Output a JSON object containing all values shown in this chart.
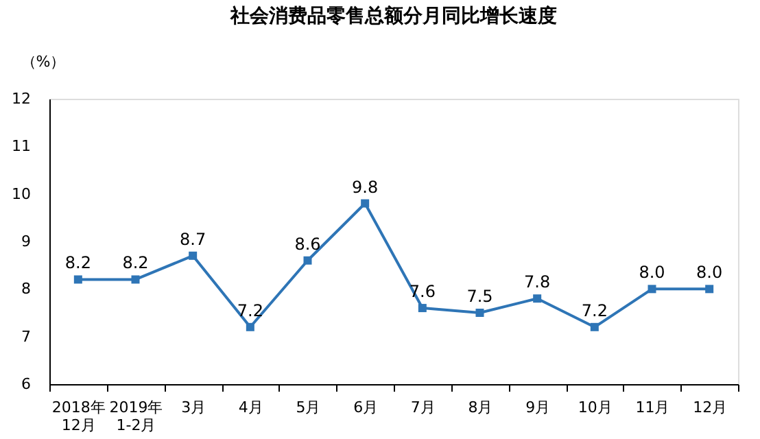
{
  "chart_data": {
    "type": "line",
    "title": "社会消费品零售总额分月同比增长速度",
    "ylabel": "（%）",
    "categories": [
      "2018年\n12月",
      "2019年\n1-2月",
      "3月",
      "4月",
      "5月",
      "6月",
      "7月",
      "8月",
      "9月",
      "10月",
      "11月",
      "12月"
    ],
    "series": [
      {
        "color": "#2e75b6",
        "values": [
          8.2,
          8.2,
          8.7,
          7.2,
          8.6,
          9.8,
          7.6,
          7.5,
          7.8,
          7.2,
          8.0,
          8.0
        ],
        "value_labels": [
          "8.2",
          "8.2",
          "8.7",
          "7.2",
          "8.6",
          "9.8",
          "7.6",
          "7.5",
          "7.8",
          "7.2",
          "8.0",
          "8.0"
        ]
      }
    ],
    "ylim": [
      6,
      12
    ],
    "yticks": [
      6,
      7,
      8,
      9,
      10,
      11,
      12
    ],
    "grid": false,
    "legend": false,
    "marker": "square",
    "line_style": "solid"
  }
}
